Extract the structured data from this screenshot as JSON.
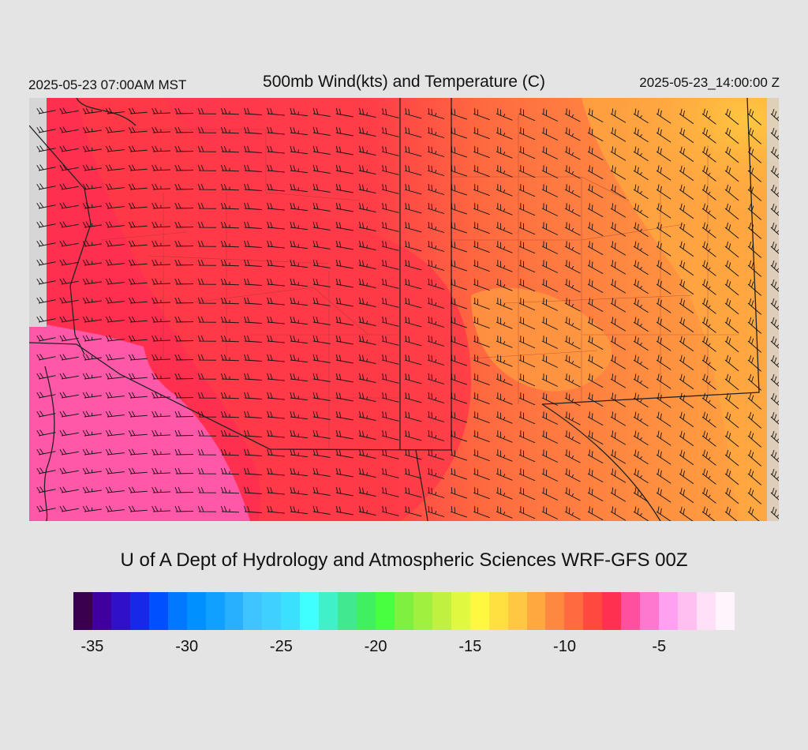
{
  "header": {
    "local_time": "2025-05-23 07:00AM MST",
    "title": "500mb Wind(kts) and Temperature (C)",
    "valid_time": "2025-05-23_14:00:00 Z"
  },
  "credit": "U of A Dept of Hydrology and Atmospheric Sciences WRF-GFS 00Z",
  "legend": {
    "colors": [
      "#3a0050",
      "#4000a0",
      "#3010c8",
      "#1828e8",
      "#0050ff",
      "#0078ff",
      "#0090ff",
      "#10a0ff",
      "#28b0ff",
      "#40c4ff",
      "#3ed0ff",
      "#3ce0ff",
      "#40ffff",
      "#40f0c8",
      "#40e890",
      "#40f060",
      "#48ff40",
      "#80f040",
      "#a0f040",
      "#c0f040",
      "#e0f840",
      "#fff840",
      "#ffe040",
      "#ffc840",
      "#ffa840",
      "#ff8840",
      "#ff6a40",
      "#ff4840",
      "#ff3050",
      "#ff50a0",
      "#ff78d0",
      "#ffa0f0",
      "#ffc0f0",
      "#ffe0f8",
      "#fff4fc"
    ],
    "labels": [
      "-35",
      "-30",
      "-25",
      "-20",
      "-15",
      "-10",
      "-5"
    ],
    "label_values": [
      -35,
      -30,
      -25,
      -20,
      -15,
      -10,
      -5
    ],
    "min": -36,
    "max": -1
  },
  "map": {
    "field": "500mb temperature (C) with wind barbs (kts)",
    "temperature_range_c": [
      -10,
      -5
    ],
    "dominant_wind": "westerly / southwesterly"
  }
}
